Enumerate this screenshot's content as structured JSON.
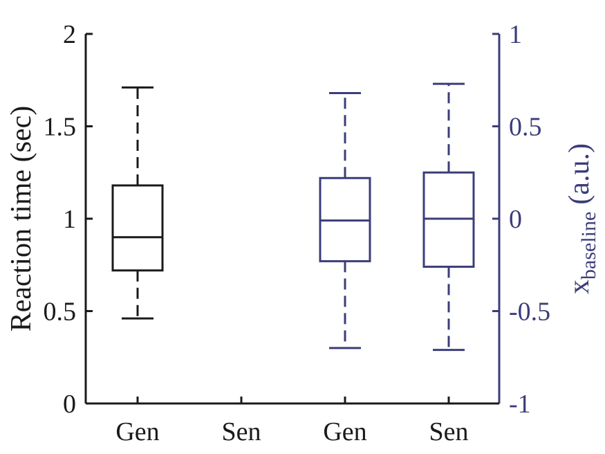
{
  "chart_data": {
    "type": "box",
    "categories": [
      "Gen",
      "Sen",
      "Gen",
      "Sen"
    ],
    "left_axis": {
      "label": "Reaction time (sec)",
      "ylim": [
        0,
        2
      ],
      "ticks": [
        0,
        0.5,
        1,
        1.5,
        2
      ],
      "tick_labels": [
        "0",
        "0.5",
        "1",
        "1.5",
        "2"
      ],
      "color": "#1a1a1a"
    },
    "right_axis": {
      "label_main": "x",
      "label_sub": "baseline",
      "label_unit": "(a.u.)",
      "ylim": [
        -1,
        1
      ],
      "ticks": [
        -1,
        -0.5,
        0,
        0.5,
        1
      ],
      "tick_labels": [
        "-1",
        "-0.5",
        "0",
        "0.5",
        "1"
      ],
      "color": "#3b3d7a"
    },
    "series": [
      {
        "axis": "left",
        "color": "#1a1a1a",
        "boxes": [
          {
            "category_index": 0,
            "whisker_low": 0.46,
            "q1": 0.72,
            "median": 0.9,
            "q3": 1.18,
            "whisker_high": 1.71
          }
        ]
      },
      {
        "axis": "right",
        "color": "#3b3d7a",
        "boxes": [
          {
            "category_index": 2,
            "whisker_low": -0.7,
            "q1": -0.23,
            "median": -0.01,
            "q3": 0.22,
            "whisker_high": 0.68
          },
          {
            "category_index": 3,
            "whisker_low": -0.71,
            "q1": -0.26,
            "median": 0.0,
            "q3": 0.25,
            "whisker_high": 0.73
          }
        ]
      }
    ],
    "grid": false
  }
}
